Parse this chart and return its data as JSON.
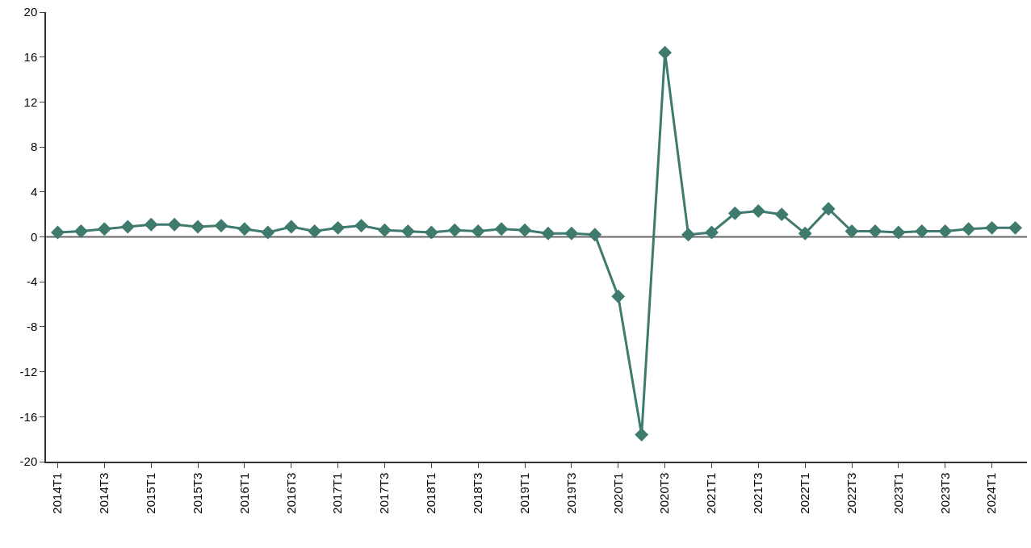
{
  "chart_data": {
    "type": "line",
    "categories": [
      "2014T1",
      null,
      "2014T3",
      null,
      "2015T1",
      null,
      "2015T3",
      null,
      "2016T1",
      null,
      "2016T3",
      null,
      "2017T1",
      null,
      "2017T3",
      null,
      "2018T1",
      null,
      "2018T3",
      null,
      "2019T1",
      null,
      "2019T3",
      null,
      "2020T1",
      null,
      "2020T3",
      null,
      "2021T1",
      null,
      "2021T3",
      null,
      "2022T1",
      null,
      "2022T3",
      null,
      "2023T1",
      null,
      "2023T3",
      null,
      "2024T1",
      null
    ],
    "series": [
      {
        "color": "#3f7a6e",
        "values": [
          0.4,
          0.5,
          0.7,
          0.9,
          1.1,
          1.1,
          0.9,
          1.0,
          0.7,
          0.4,
          0.9,
          0.5,
          0.8,
          1.0,
          0.6,
          0.5,
          0.4,
          0.6,
          0.5,
          0.7,
          0.6,
          0.3,
          0.3,
          0.2,
          -5.3,
          -17.6,
          16.4,
          0.2,
          0.4,
          2.1,
          2.3,
          2.0,
          0.3,
          2.5,
          0.5,
          0.5,
          0.4,
          0.5,
          0.5,
          0.7,
          0.8,
          0.8
        ]
      }
    ],
    "ylim": [
      -20,
      20
    ],
    "yticks": [
      -20,
      -16,
      -12,
      -8,
      -4,
      0,
      4,
      8,
      12,
      16,
      20
    ],
    "ref_lines": [
      {
        "axis": "y",
        "value": 0,
        "color": "#666666"
      }
    ],
    "grid": false,
    "marker": "diamond",
    "line_style": "solid"
  }
}
